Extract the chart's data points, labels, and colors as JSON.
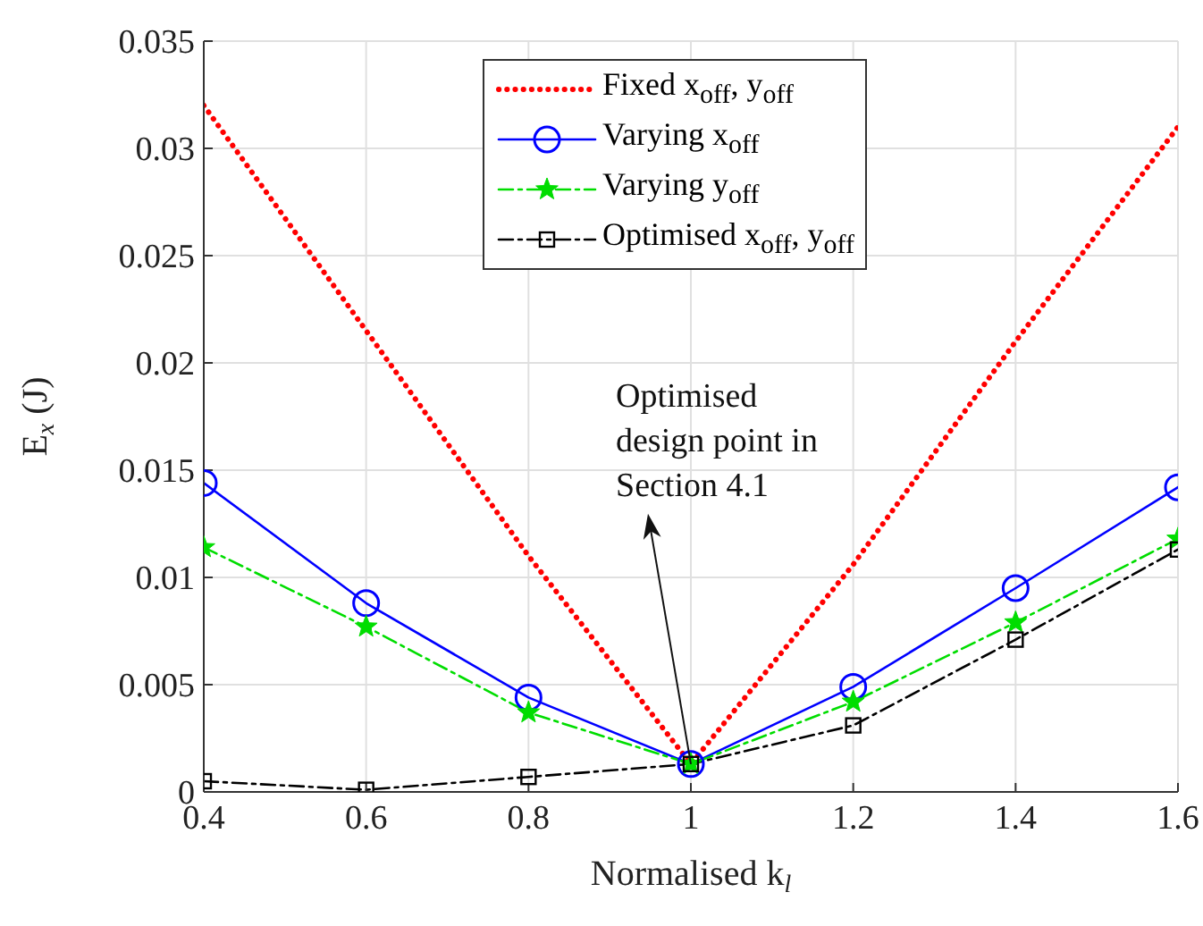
{
  "chart_data": {
    "type": "line",
    "xlabel": "Normalised k$_{l}$",
    "ylabel": "E$_{x}$ (J)",
    "x": [
      0.4,
      0.6,
      0.8,
      1,
      1.2,
      1.4,
      1.6
    ],
    "series": [
      {
        "name": "Fixed x$_{off}$, y$_{off}$",
        "color": "#ff0000",
        "values": [
          0.032,
          0.0215,
          0.011,
          0.0013,
          0.0106,
          0.021,
          0.031
        ],
        "marker": "none",
        "line_style": "dotted"
      },
      {
        "name": "Varying x$_{off}$",
        "color": "#0000ff",
        "values": [
          0.0144,
          0.0088,
          0.0044,
          0.0013,
          0.0049,
          0.0095,
          0.0142
        ],
        "marker": "circle",
        "line_style": "solid"
      },
      {
        "name": "Varying y$_{off}$",
        "color": "#00dd00",
        "values": [
          0.0114,
          0.0077,
          0.0037,
          0.0013,
          0.0042,
          0.0079,
          0.0118
        ],
        "marker": "star",
        "line_style": "dashed"
      },
      {
        "name": "Optimised x$_{off}$, y$_{off}$",
        "color": "#000000",
        "values": [
          0.0005,
          0.0001,
          0.0007,
          0.0013,
          0.0031,
          0.0071,
          0.0113
        ],
        "marker": "square",
        "line_style": "dashed"
      }
    ],
    "xlim": [
      0.4,
      1.6
    ],
    "xticks": [
      0.4,
      0.6,
      0.8,
      1,
      1.2,
      1.4,
      1.6
    ],
    "ylim": [
      0,
      0.035
    ],
    "yticks": [
      0,
      0.005,
      0.01,
      0.015,
      0.02,
      0.025,
      0.03,
      0.035
    ],
    "grid": true,
    "legend": "top",
    "annotations": [
      {
        "text": "Optimised design point in Section 4.1",
        "x": 1,
        "y": 0.0013
      }
    ]
  }
}
